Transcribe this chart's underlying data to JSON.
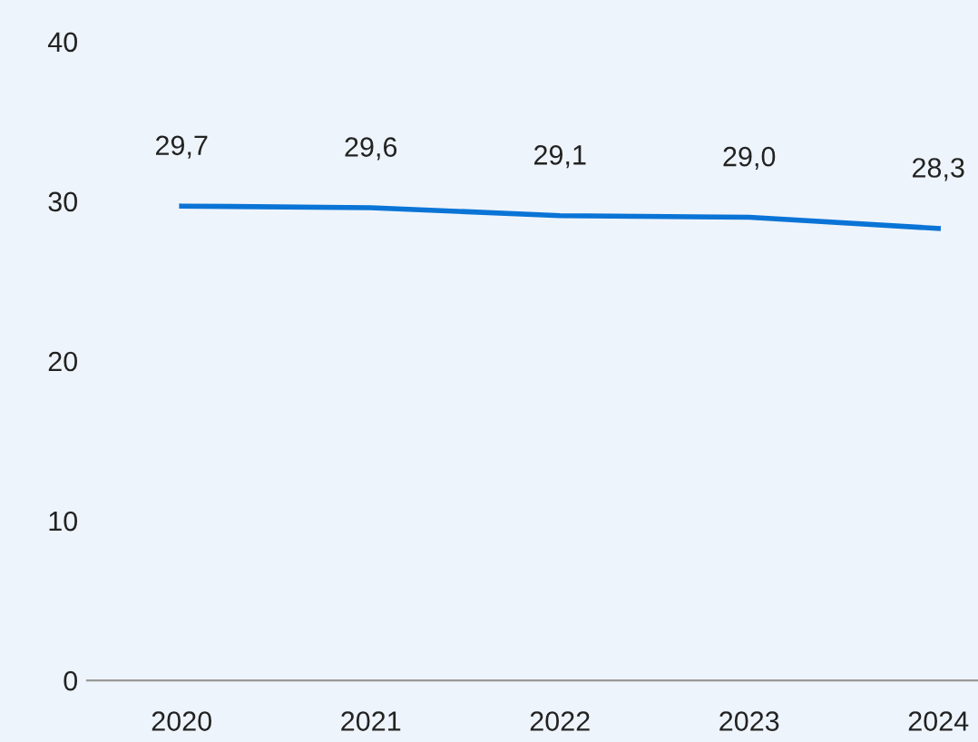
{
  "chart_data": {
    "type": "line",
    "categories": [
      "2020",
      "2021",
      "2022",
      "2023",
      "2024"
    ],
    "series": [
      {
        "color": "#0a74d6",
        "values": [
          29.7,
          29.6,
          29.1,
          29.0,
          28.3
        ],
        "value_labels": [
          "29,7",
          "29,6",
          "29,1",
          "29,0",
          "28,3"
        ]
      }
    ],
    "ylim": [
      0,
      40
    ],
    "yticks": [
      0,
      10,
      20,
      30,
      40
    ],
    "grid": false,
    "legend": false,
    "marker": "none",
    "line_style": "solid"
  }
}
